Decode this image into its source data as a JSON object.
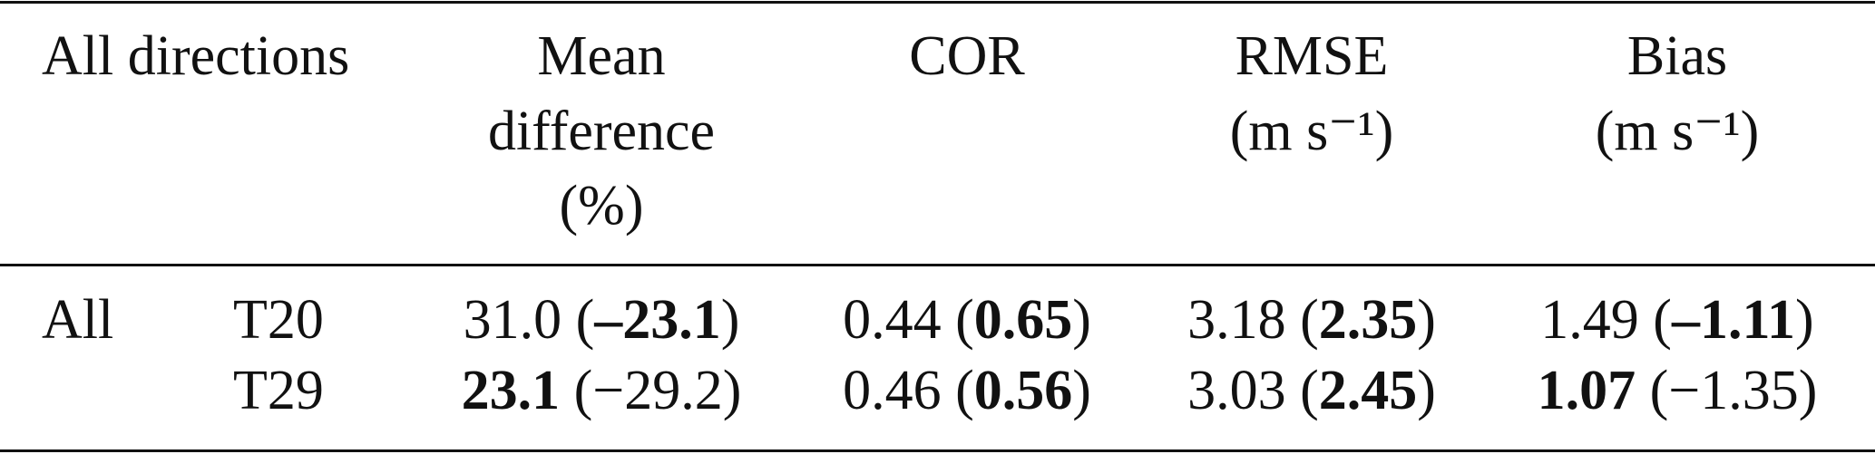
{
  "table": {
    "header": [
      {
        "lines": [
          "All directions"
        ]
      },
      {
        "lines": [
          "Mean",
          "difference",
          "(%)"
        ]
      },
      {
        "lines": [
          "COR"
        ]
      },
      {
        "lines": [
          "RMSE",
          "(m s⁻¹)"
        ]
      },
      {
        "lines": [
          "Bias",
          "(m s⁻¹)"
        ]
      }
    ],
    "rows": [
      {
        "label": "All",
        "model": "T20",
        "cells": [
          [
            {
              "text": "31.0 (",
              "bold": false
            },
            {
              "text": "–23.1",
              "bold": true
            },
            {
              "text": ")",
              "bold": false
            }
          ],
          [
            {
              "text": "0.44 (",
              "bold": false
            },
            {
              "text": "0.65",
              "bold": true
            },
            {
              "text": ")",
              "bold": false
            }
          ],
          [
            {
              "text": "3.18 (",
              "bold": false
            },
            {
              "text": "2.35",
              "bold": true
            },
            {
              "text": ")",
              "bold": false
            }
          ],
          [
            {
              "text": "1.49 (",
              "bold": false
            },
            {
              "text": "–1.11",
              "bold": true
            },
            {
              "text": ")",
              "bold": false
            }
          ]
        ]
      },
      {
        "model": "T29",
        "cells": [
          [
            {
              "text": "23.1",
              "bold": true
            },
            {
              "text": " (−29.2)",
              "bold": false
            }
          ],
          [
            {
              "text": "0.46 (",
              "bold": false
            },
            {
              "text": "0.56",
              "bold": true
            },
            {
              "text": ")",
              "bold": false
            }
          ],
          [
            {
              "text": "3.03 (",
              "bold": false
            },
            {
              "text": "2.45",
              "bold": true
            },
            {
              "text": ")",
              "bold": false
            }
          ],
          [
            {
              "text": "1.07",
              "bold": true
            },
            {
              "text": " (−1.35)",
              "bold": false
            }
          ]
        ]
      }
    ]
  }
}
